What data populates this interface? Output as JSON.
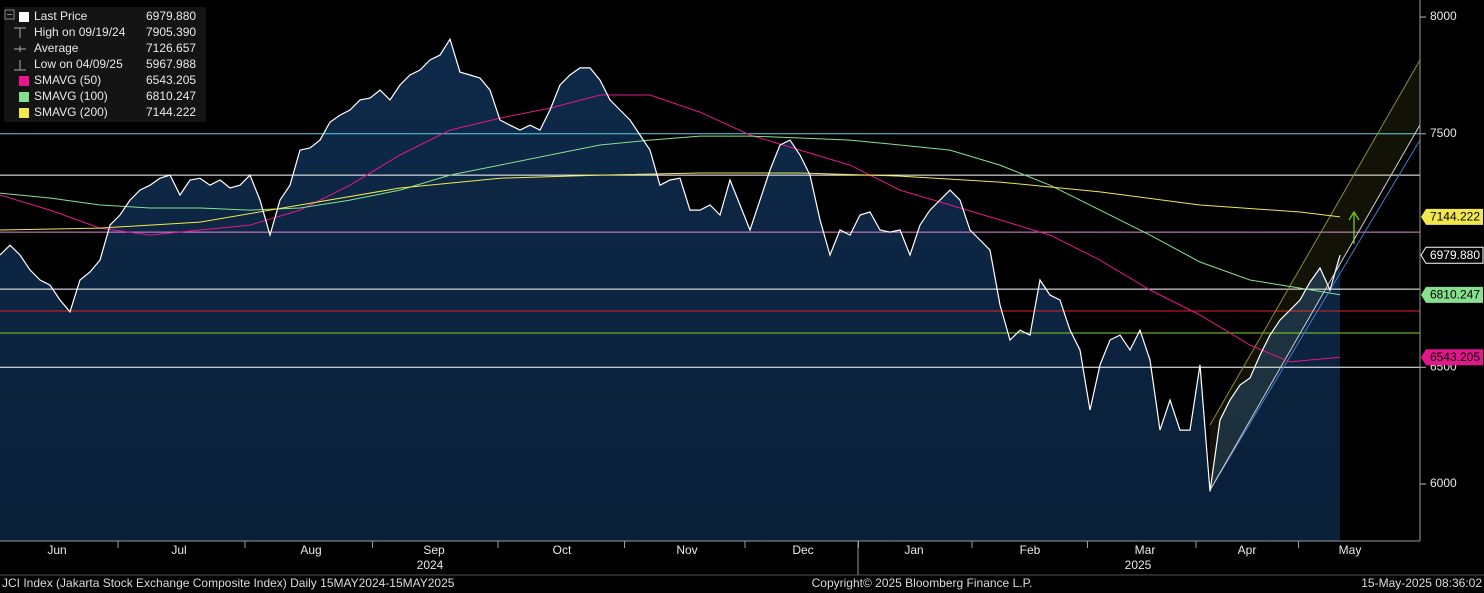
{
  "chart_data": {
    "type": "line",
    "title": "JCI Index (Jakarta Stock Exchange Composite Index)  Daily 15MAY2024-15MAY2025",
    "copyright": "Copyright© 2025 Bloomberg Finance L.P.",
    "timestamp": "15-May-2025 08:36:02",
    "xlim": [
      0,
      142
    ],
    "ylim": [
      5756,
      8073
    ],
    "yticks": [
      6000,
      6500,
      7500,
      8000
    ],
    "xticks": [
      {
        "value": 5.7,
        "label": "Jun"
      },
      {
        "value": 17.9,
        "label": "Jul"
      },
      {
        "value": 31.1,
        "label": "Aug"
      },
      {
        "value": 43.4,
        "label": "Sep"
      },
      {
        "value": 56.2,
        "label": "Oct"
      },
      {
        "value": 68.7,
        "label": "Nov"
      },
      {
        "value": 80.3,
        "label": "Dec"
      },
      {
        "value": 91.4,
        "label": "Jan"
      },
      {
        "value": 103,
        "label": "Feb"
      },
      {
        "value": 114.5,
        "label": "Mar"
      },
      {
        "value": 124.7,
        "label": "Apr"
      },
      {
        "value": 135,
        "label": "May"
      }
    ],
    "year_ticks": [
      {
        "value": 43,
        "label": "2024"
      },
      {
        "value": 113.8,
        "label": "2025"
      }
    ],
    "series": [
      {
        "name": "Last Price",
        "color": "#ffffff",
        "last_label": "6979.880",
        "values": [
          6981,
          7023,
          6981,
          6917,
          6874,
          6852,
          6788,
          6737,
          6874,
          6908,
          6959,
          7109,
          7152,
          7216,
          7259,
          7280,
          7310,
          7323,
          7238,
          7302,
          7310,
          7280,
          7302,
          7268,
          7280,
          7323,
          7216,
          7066,
          7216,
          7280,
          7430,
          7439,
          7473,
          7550,
          7580,
          7602,
          7645,
          7653,
          7687,
          7645,
          7709,
          7752,
          7773,
          7816,
          7837,
          7905,
          7764,
          7752,
          7739,
          7687,
          7559,
          7537,
          7516,
          7537,
          7516,
          7602,
          7709,
          7752,
          7782,
          7782,
          7730,
          7645,
          7602,
          7559,
          7495,
          7430,
          7280,
          7302,
          7310,
          7173,
          7173,
          7195,
          7152,
          7302,
          7195,
          7088,
          7216,
          7345,
          7452,
          7473,
          7409,
          7323,
          7131,
          6981,
          7088,
          7066,
          7152,
          7165,
          7088,
          7079,
          7088,
          6981,
          7109,
          7173,
          7216,
          7259,
          7216,
          7088,
          7045,
          7002,
          6767,
          6617,
          6659,
          6638,
          6874,
          6809,
          6788,
          6659,
          6574,
          6317,
          6510,
          6617,
          6638,
          6574,
          6659,
          6531,
          6231,
          6360,
          6231,
          6231,
          6510,
          5968,
          6274,
          6360,
          6424,
          6454,
          6552,
          6638,
          6702,
          6745,
          6788,
          6865,
          6925,
          6831,
          6979.88
        ]
      },
      {
        "name": "SMAVG (50)",
        "color": "#e3168c",
        "last_label": "6543.205",
        "x": [
          0,
          5,
          10,
          15,
          20,
          25,
          30,
          35,
          40,
          45,
          50,
          55,
          60,
          65,
          70,
          75,
          80,
          85,
          90,
          95,
          100,
          105,
          110,
          115,
          120,
          125,
          129,
          131,
          134
        ],
        "values": [
          7238,
          7173,
          7096,
          7066,
          7088,
          7109,
          7173,
          7280,
          7409,
          7516,
          7567,
          7610,
          7666,
          7666,
          7593,
          7495,
          7430,
          7366,
          7259,
          7195,
          7131,
          7066,
          6959,
          6831,
          6724,
          6595,
          6523,
          6531,
          6543.205
        ]
      },
      {
        "name": "SMAVG (100)",
        "color": "#86e08e",
        "last_label": "6810.247",
        "x": [
          0,
          5,
          10,
          15,
          20,
          25,
          30,
          35,
          40,
          45,
          50,
          55,
          60,
          65,
          70,
          75,
          80,
          85,
          90,
          95,
          100,
          105,
          110,
          115,
          120,
          125,
          130,
          134
        ],
        "values": [
          7246,
          7225,
          7195,
          7182,
          7182,
          7173,
          7182,
          7216,
          7259,
          7323,
          7366,
          7409,
          7452,
          7473,
          7490,
          7490,
          7482,
          7473,
          7452,
          7430,
          7366,
          7280,
          7173,
          7066,
          6951,
          6874,
          6839,
          6810.247
        ]
      },
      {
        "name": "SMAVG (200)",
        "color": "#f3e74e",
        "last_label": "7144.222",
        "x": [
          0,
          10,
          20,
          30,
          40,
          50,
          60,
          70,
          80,
          90,
          100,
          110,
          120,
          130,
          134
        ],
        "values": [
          7088,
          7096,
          7122,
          7195,
          7268,
          7310,
          7323,
          7332,
          7332,
          7319,
          7293,
          7251,
          7195,
          7165,
          7144.222
        ]
      }
    ],
    "stats": [
      {
        "label": "High on 09/19/24",
        "value": 7905.39,
        "value_label": "7905.390"
      },
      {
        "label": "Average",
        "value": 7126.657,
        "value_label": "7126.657"
      },
      {
        "label": "Low on 04/09/25",
        "value": 5967.988,
        "value_label": "5967.988"
      }
    ],
    "hlines": [
      {
        "value": 7500,
        "color": "#5fd0e6"
      },
      {
        "value": 7323,
        "color": "#ffffff"
      },
      {
        "value": 7079,
        "color": "#e58ad8"
      },
      {
        "value": 6835,
        "color": "#ffffff"
      },
      {
        "value": 6741,
        "color": "#e0202a"
      },
      {
        "value": 6647,
        "color": "#7ed321"
      },
      {
        "value": 6500,
        "color": "#ffffff"
      }
    ],
    "trend_lines": [
      {
        "x": [
          121,
          142
        ],
        "values": [
          5974,
          7473
        ],
        "color": "#4a78c8"
      },
      {
        "x": [
          121,
          142
        ],
        "values": [
          5974,
          7538
        ],
        "color": "#cfcfcf"
      },
      {
        "x": [
          121,
          142
        ],
        "values": [
          6253,
          7816
        ],
        "color": "#8c8a3c"
      }
    ]
  }
}
